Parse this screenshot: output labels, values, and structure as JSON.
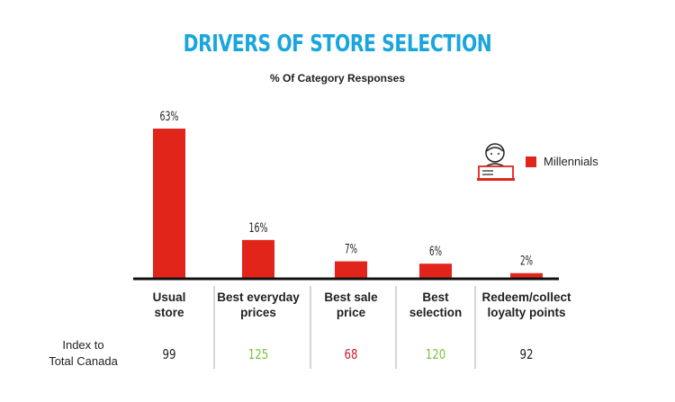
{
  "header": {
    "title": "DRIVERS OF STORE SELECTION",
    "subtitle": "% Of Category Responses"
  },
  "legend": {
    "icon": "millennial-person-laptop-icon",
    "label": "Millennials",
    "color": "#e1251b"
  },
  "index_row": {
    "label_line1": "Index to",
    "label_line2": "Total Canada"
  },
  "colors": {
    "bar": "#e1251b",
    "index_green": "#7cc242",
    "index_red": "#c8202f",
    "index_neutral": "#222222"
  },
  "chart_data": {
    "type": "bar",
    "title": "DRIVERS OF STORE SELECTION",
    "subtitle": "% Of Category Responses",
    "categories": [
      [
        "Usual",
        "store"
      ],
      [
        "Best everyday",
        "prices"
      ],
      [
        "Best sale",
        "price"
      ],
      [
        "Best",
        "selection"
      ],
      [
        "Redeem/collect",
        "loyalty points"
      ]
    ],
    "series": [
      {
        "name": "Millennials",
        "values": [
          63,
          16,
          7,
          6,
          2
        ]
      }
    ],
    "value_labels": [
      "63%",
      "16%",
      "7%",
      "6%",
      "2%"
    ],
    "index_values": [
      "99",
      "125",
      "68",
      "120",
      "92"
    ],
    "index_status": [
      "neutral",
      "green",
      "red",
      "green",
      "neutral"
    ],
    "ylim": [
      0,
      63
    ],
    "grid": false,
    "legend_position": "right"
  }
}
